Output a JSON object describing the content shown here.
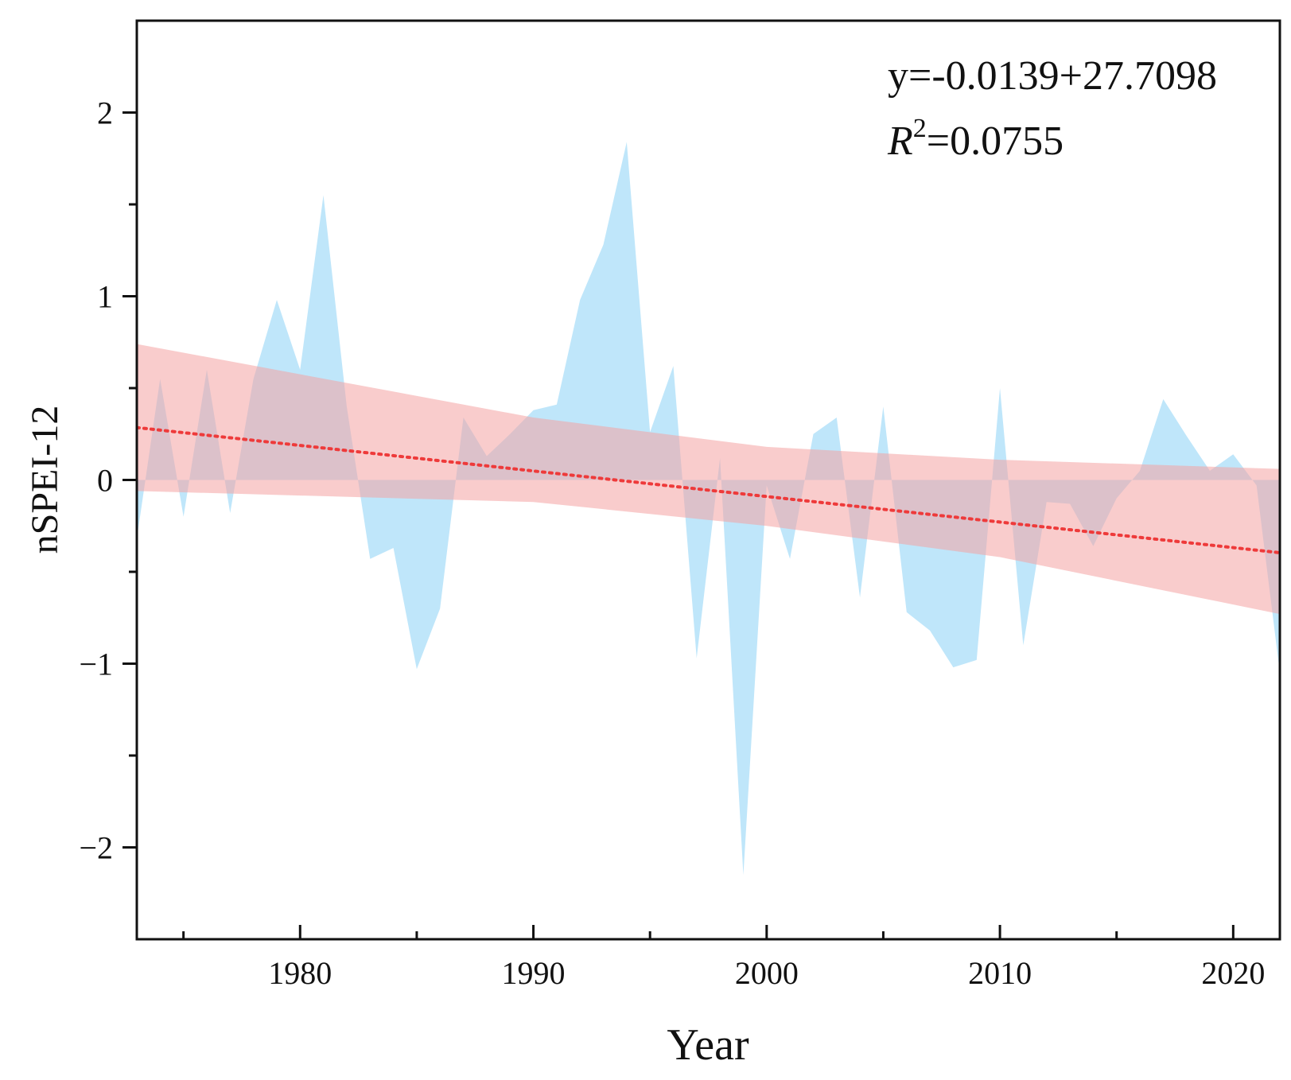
{
  "chart_data": {
    "type": "area",
    "title": "",
    "xlabel": "Year",
    "ylabel": "nSPEI-12",
    "xlim": [
      1973,
      2022
    ],
    "ylim": [
      -2.5,
      2.5
    ],
    "x_major_ticks": [
      1980,
      1990,
      2000,
      2010,
      2020
    ],
    "x_minor_ticks": [
      1975,
      1985,
      1995,
      2005,
      2015
    ],
    "y_major_ticks": [
      -2,
      -1,
      0,
      1,
      2
    ],
    "y_minor_ticks": [
      -1.5,
      -0.5,
      0.5,
      1.5
    ],
    "y_tick_labels": [
      "−2",
      "−1",
      "0",
      "1",
      "2"
    ],
    "x_tick_labels": [
      "1980",
      "1990",
      "2000",
      "2010",
      "2020"
    ],
    "x": [
      1973,
      1974,
      1975,
      1976,
      1977,
      1978,
      1979,
      1980,
      1981,
      1982,
      1983,
      1984,
      1985,
      1986,
      1987,
      1988,
      1989,
      1990,
      1991,
      1992,
      1993,
      1994,
      1995,
      1996,
      1997,
      1998,
      1999,
      2000,
      2001,
      2002,
      2003,
      2004,
      2005,
      2006,
      2007,
      2008,
      2009,
      2010,
      2011,
      2012,
      2013,
      2014,
      2015,
      2016,
      2017,
      2018,
      2019,
      2020,
      2021,
      2022
    ],
    "series": [
      {
        "name": "nSPEI-12",
        "color": "#bfe6fa",
        "values": [
          -0.32,
          0.55,
          -0.2,
          0.6,
          -0.18,
          0.55,
          0.98,
          0.6,
          1.55,
          0.4,
          -0.43,
          -0.37,
          -1.03,
          -0.7,
          0.34,
          0.13,
          0.25,
          0.38,
          0.41,
          0.98,
          1.28,
          1.84,
          0.26,
          0.62,
          -0.97,
          0.12,
          -2.15,
          -0.03,
          -0.43,
          0.25,
          0.34,
          -0.64,
          0.4,
          -0.72,
          -0.82,
          -1.02,
          -0.98,
          0.5,
          -0.9,
          -0.12,
          -0.13,
          -0.36,
          -0.1,
          0.05,
          0.44,
          0.24,
          0.05,
          0.14,
          -0.03,
          -1.05
        ]
      }
    ],
    "trend": {
      "name": "linear fit",
      "color": "#ee3a3a",
      "slope": -0.0139,
      "intercept": 27.7098,
      "style": "dotted"
    },
    "confidence_band": {
      "name": "95% confidence band",
      "color": "#f4a3a3",
      "x": [
        1973,
        1990,
        2000,
        2010,
        2022
      ],
      "upper": [
        0.74,
        0.34,
        0.18,
        0.11,
        0.06
      ],
      "lower": [
        -0.06,
        -0.12,
        -0.25,
        -0.42,
        -0.73
      ]
    },
    "annotations": {
      "equation": "y=-0.0139+27.7098",
      "r2_label_base": "R",
      "r2_label_exp": "2",
      "r2_value": "=0.0755"
    }
  }
}
